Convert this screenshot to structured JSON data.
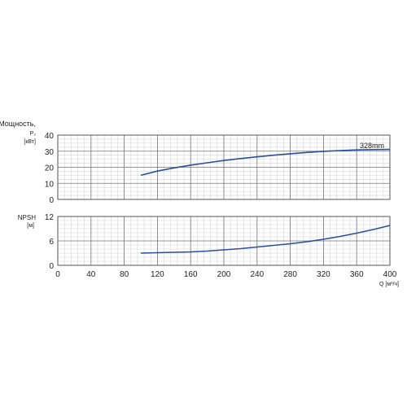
{
  "colors": {
    "curve": "#2a4f9e",
    "grid_major": "#777777",
    "grid_minor": "#d4d4d4",
    "frame": "#555555",
    "text": "#222222"
  },
  "chart_data": [
    {
      "type": "line",
      "ylabel_lines": [
        "Мощность,",
        "P₂",
        "[кВт]"
      ],
      "xlim": [
        0,
        400
      ],
      "ylim": [
        0,
        40
      ],
      "yticks": [
        0,
        10,
        20,
        30,
        40
      ],
      "grid": true,
      "annotation": "328mm",
      "series": [
        {
          "x": [
            100,
            120,
            140,
            160,
            180,
            200,
            220,
            240,
            260,
            280,
            300,
            320,
            340,
            360,
            380,
            400
          ],
          "y": [
            15.0,
            17.6,
            19.6,
            21.3,
            22.8,
            24.2,
            25.4,
            26.5,
            27.5,
            28.4,
            29.2,
            29.9,
            30.4,
            30.8,
            31.0,
            31.1
          ]
        }
      ]
    },
    {
      "type": "line",
      "ylabel_lines": [
        "NPSH",
        "[м]"
      ],
      "xlabel": "Q [м³/ч]",
      "xlim": [
        0,
        400
      ],
      "ylim": [
        0,
        12
      ],
      "yticks": [
        0,
        6,
        12
      ],
      "xticks": [
        0,
        40,
        80,
        120,
        160,
        200,
        240,
        280,
        320,
        360,
        400
      ],
      "grid": true,
      "series": [
        {
          "x": [
            100,
            120,
            140,
            160,
            180,
            200,
            220,
            240,
            260,
            280,
            300,
            320,
            340,
            360,
            380,
            400
          ],
          "y": [
            3.0,
            3.1,
            3.2,
            3.3,
            3.5,
            3.8,
            4.1,
            4.5,
            4.9,
            5.3,
            5.8,
            6.4,
            7.1,
            7.9,
            8.8,
            9.8
          ]
        }
      ]
    }
  ]
}
